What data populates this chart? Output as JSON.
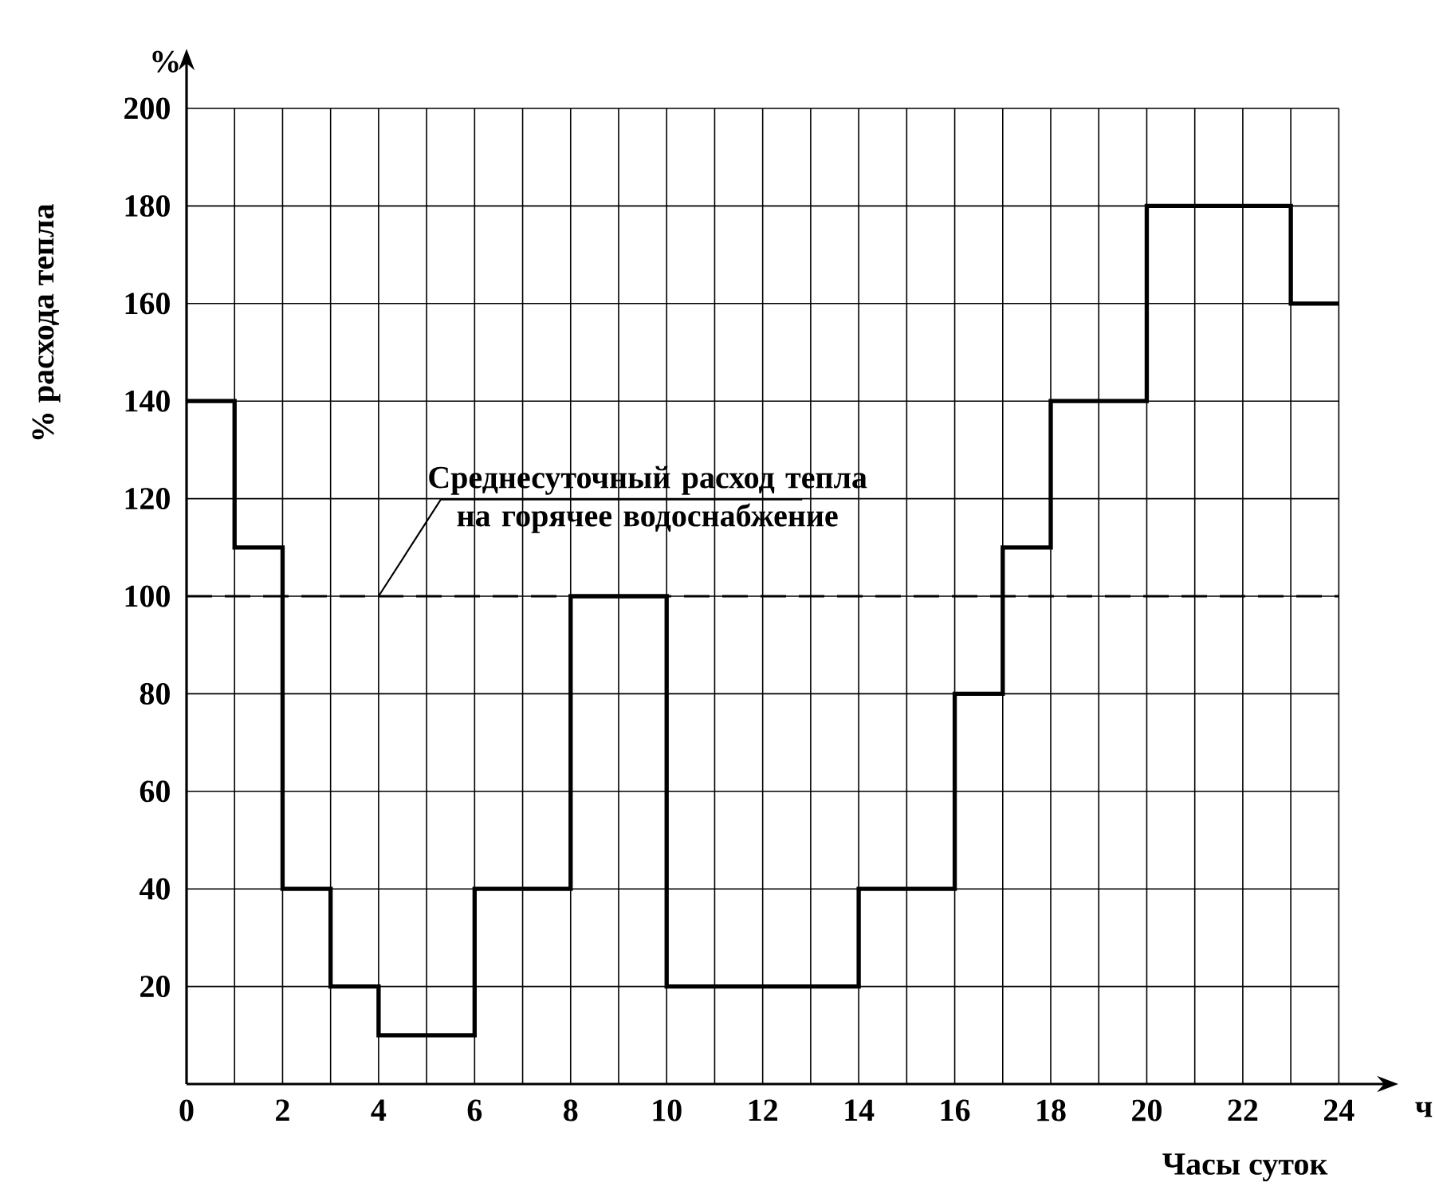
{
  "chart_data": {
    "type": "step",
    "xlabel": "Часы суток",
    "ylabel": "% расхода тепла",
    "x": [
      0,
      1,
      2,
      3,
      4,
      5,
      6,
      7,
      8,
      9,
      10,
      11,
      12,
      13,
      14,
      15,
      16,
      17,
      18,
      19,
      20,
      21,
      22,
      23,
      24
    ],
    "values": [
      140,
      110,
      40,
      20,
      10,
      10,
      40,
      40,
      100,
      100,
      20,
      20,
      20,
      20,
      40,
      40,
      80,
      110,
      140,
      140,
      180,
      180,
      180,
      160,
      160
    ],
    "color": "#000000",
    "line_style": "solid",
    "marker": "none",
    "xlim": [
      0,
      24
    ],
    "ylim": [
      0,
      200
    ],
    "xticks": [
      0,
      {
        "value": 1,
        "label": null
      },
      2,
      {
        "value": 3,
        "label": null
      },
      4,
      {
        "value": 5,
        "label": null
      },
      6,
      {
        "value": 7,
        "label": null
      },
      8,
      {
        "value": 9,
        "label": null
      },
      10,
      {
        "value": 11,
        "label": null
      },
      12,
      {
        "value": 13,
        "label": null
      },
      14,
      {
        "value": 15,
        "label": null
      },
      16,
      {
        "value": 17,
        "label": null
      },
      18,
      {
        "value": 19,
        "label": null
      },
      20,
      {
        "value": 21,
        "label": null
      },
      22,
      {
        "value": 23,
        "label": null
      },
      24
    ],
    "yticks": [
      20,
      40,
      60,
      80,
      100,
      120,
      140,
      160,
      180,
      200
    ],
    "grid": true,
    "ref_lines": [
      {
        "axis": "y",
        "value": 100,
        "label": "Среднесуточный расход тепла на горячее водоснабжение",
        "line_style": "dashed",
        "color": "#000000"
      }
    ],
    "annotations": [
      "%",
      "ч"
    ]
  }
}
